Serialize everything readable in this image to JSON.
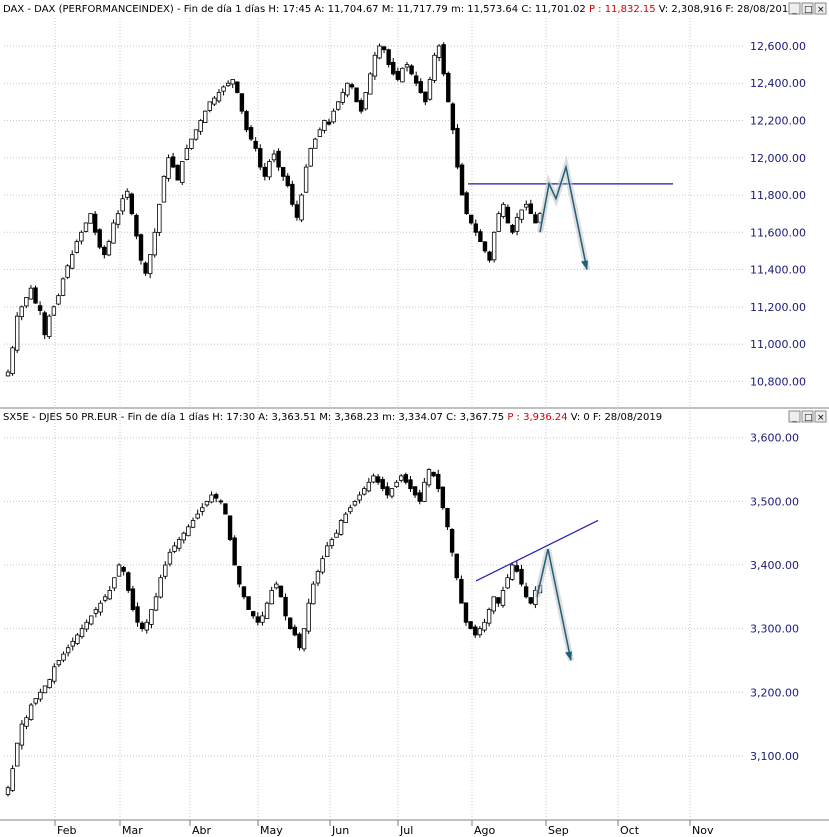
{
  "panels": [
    {
      "header_parts": [
        {
          "text": "DAX - DAX (PERFORMANCEINDEX) - Fin de día 1 días  H: 17:45  A: 11,704.67  M: 11,717.79  m: 11,573.64  C: 11,701.02 ",
          "red": false
        },
        {
          "text": "P : 11,832.15",
          "red": true
        },
        {
          "text": "  V: 2,308,916  F: 28/08/201",
          "red": false
        }
      ],
      "y_ticks": [
        "12,600.00",
        "12,400.00",
        "12,200.00",
        "12,000.00",
        "11,800.00",
        "11,600.00",
        "11,400.00",
        "11,200.00",
        "11,000.00",
        "10,800.00"
      ]
    },
    {
      "header_parts": [
        {
          "text": "SX5E - DJES 50 PR.EUR - Fin de día 1 días  H: 17:30  A: 3,363.51  M: 3,368.23  m: 3,334.07  C: 3,367.75 ",
          "red": false
        },
        {
          "text": "P : 3,936.24",
          "red": true
        },
        {
          "text": "  V: 0  F: 28/08/2019",
          "red": false
        }
      ],
      "y_ticks": [
        "3,600.00",
        "3,500.00",
        "3,400.00",
        "3,300.00",
        "3,200.00",
        "3,100.00"
      ]
    }
  ],
  "x_ticks": [
    "Feb",
    "Mar",
    "Abr",
    "May",
    "Jun",
    "Jul",
    "Ago",
    "Sep",
    "Oct",
    "Nov"
  ],
  "window_buttons": [
    "_",
    "□",
    "×"
  ],
  "colors": {
    "up": "#ffffff",
    "down": "#000000",
    "annotation": "#1f5f7a",
    "horizontal_line": "#1a1aa0",
    "trend_line": "#2020c0",
    "axis_text": "#1a1a7a"
  },
  "chart_data": [
    {
      "type": "candlestick",
      "title": "DAX - DAX (PERFORMANCEINDEX)",
      "ylim": [
        10700,
        12750
      ],
      "approx_closes": [
        10850,
        10980,
        11150,
        11200,
        11250,
        11300,
        11220,
        11180,
        11050,
        11150,
        11200,
        11260,
        11350,
        11420,
        11480,
        11550,
        11600,
        11650,
        11700,
        11600,
        11520,
        11480,
        11550,
        11650,
        11700,
        11780,
        11820,
        11700,
        11580,
        11450,
        11380,
        11480,
        11600,
        11750,
        11900,
        12000,
        11950,
        11880,
        11980,
        12050,
        12100,
        12150,
        12200,
        12250,
        12300,
        12320,
        12350,
        12380,
        12400,
        12420,
        12350,
        12250,
        12150,
        12100,
        12050,
        11950,
        11900,
        11980,
        12020,
        11950,
        11900,
        11850,
        11750,
        11680,
        11800,
        11950,
        12050,
        12100,
        12150,
        12200,
        12180,
        12250,
        12300,
        12350,
        12400,
        12380,
        12300,
        12250,
        12350,
        12450,
        12550,
        12600,
        12580,
        12500,
        12450,
        12420,
        12480,
        12500,
        12450,
        12400,
        12350,
        12300,
        12420,
        12550,
        12600,
        12450,
        12300,
        12150,
        11950,
        11800,
        11700,
        11650,
        11600,
        11550,
        11500,
        11450,
        11600,
        11700,
        11750,
        11650,
        11600,
        11680,
        11720,
        11750,
        11700,
        11650,
        11700
      ],
      "horizontal_level": 11860,
      "projection": [
        11600,
        11860,
        11780,
        11950,
        11400
      ]
    },
    {
      "type": "candlestick",
      "title": "SX5E - DJES 50 PR.EUR",
      "ylim": [
        3015,
        3620
      ],
      "approx_closes": [
        3050,
        3080,
        3120,
        3150,
        3160,
        3180,
        3190,
        3200,
        3210,
        3220,
        3240,
        3250,
        3260,
        3270,
        3280,
        3290,
        3300,
        3310,
        3320,
        3330,
        3340,
        3350,
        3360,
        3380,
        3400,
        3390,
        3360,
        3330,
        3310,
        3300,
        3310,
        3330,
        3350,
        3380,
        3400,
        3420,
        3430,
        3440,
        3450,
        3460,
        3470,
        3480,
        3490,
        3500,
        3510,
        3505,
        3500,
        3480,
        3440,
        3400,
        3370,
        3350,
        3330,
        3320,
        3310,
        3320,
        3340,
        3360,
        3370,
        3350,
        3320,
        3300,
        3290,
        3270,
        3300,
        3340,
        3370,
        3390,
        3410,
        3430,
        3440,
        3450,
        3470,
        3480,
        3490,
        3500,
        3510,
        3520,
        3530,
        3540,
        3530,
        3520,
        3510,
        3520,
        3530,
        3540,
        3530,
        3520,
        3510,
        3500,
        3530,
        3550,
        3540,
        3520,
        3490,
        3460,
        3420,
        3380,
        3340,
        3310,
        3300,
        3290,
        3300,
        3310,
        3330,
        3350,
        3340,
        3360,
        3380,
        3400,
        3390,
        3370,
        3350,
        3340,
        3360,
        3368
      ],
      "trend_line": [
        3375,
        3470
      ],
      "projection": [
        3350,
        3425,
        3250
      ]
    }
  ]
}
